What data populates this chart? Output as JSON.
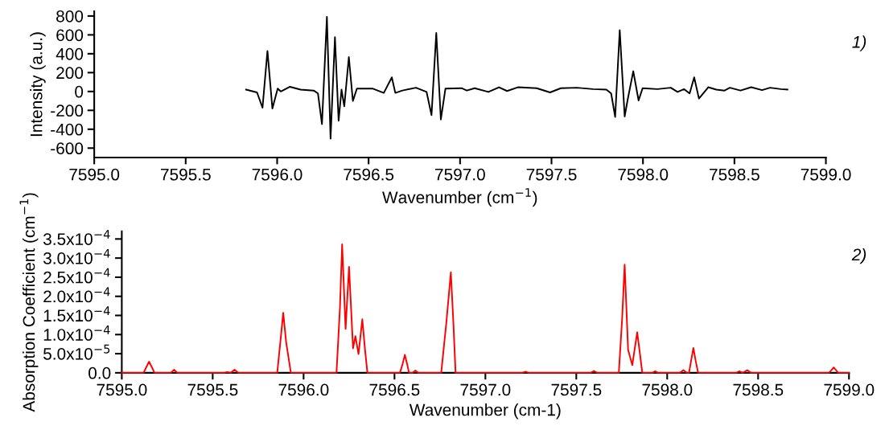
{
  "chart_data": [
    {
      "type": "line",
      "xlabel": "Wavenumber (cm$^{−1}$)",
      "ylabel": "Intensity (a.u.)",
      "annotations": [
        "1)"
      ],
      "xlim": [
        7595.0,
        7599.0
      ],
      "xticks": [
        {
          "value": 7595.0,
          "label": "7595.0"
        },
        {
          "value": 7595.5,
          "label": "7595.5"
        },
        {
          "value": 7596.0,
          "label": "7596.0"
        },
        {
          "value": 7596.5,
          "label": "7596.5"
        },
        {
          "value": 7597.0,
          "label": "7597.0"
        },
        {
          "value": 7597.5,
          "label": "7597.5"
        },
        {
          "value": 7598.0,
          "label": "7598.0"
        },
        {
          "value": 7598.5,
          "label": "7598.5"
        },
        {
          "value": 7599.0,
          "label": "7599.0"
        }
      ],
      "ylim": [
        -700,
        850
      ],
      "yticks": [
        -600,
        -400,
        -200,
        0,
        200,
        400,
        600,
        800
      ],
      "grid": false,
      "marker": "none",
      "line_style": "solid",
      "series": [
        {
          "color": "#000000",
          "x": [
            7595.83,
            7595.89,
            7595.92,
            7595.947,
            7595.974,
            7596.003,
            7596.02,
            7596.07,
            7596.128,
            7596.2,
            7596.223,
            7596.245,
            7596.272,
            7596.292,
            7596.316,
            7596.336,
            7596.352,
            7596.367,
            7596.392,
            7596.414,
            7596.436,
            7596.524,
            7596.583,
            7596.627,
            7596.646,
            7596.685,
            7596.759,
            7596.817,
            7596.844,
            7596.87,
            7596.895,
            7596.92,
            7597.008,
            7597.037,
            7597.08,
            7597.155,
            7597.213,
            7597.257,
            7597.316,
            7597.419,
            7597.492,
            7597.551,
            7597.639,
            7597.727,
            7597.8,
            7597.826,
            7597.848,
            7597.873,
            7597.9,
            7597.917,
            7597.947,
            7597.976,
            7597.998,
            7598.079,
            7598.152,
            7598.189,
            7598.225,
            7598.255,
            7598.28,
            7598.306,
            7598.357,
            7598.401,
            7598.446,
            7598.475,
            7598.533,
            7598.592,
            7598.651,
            7598.695,
            7598.754,
            7598.79
          ],
          "values": [
            20,
            -10,
            -172,
            430,
            -180,
            30,
            0,
            50,
            20,
            10,
            -20,
            -345,
            790,
            -500,
            575,
            -310,
            20,
            -158,
            365,
            -100,
            30,
            30,
            -15,
            150,
            -15,
            10,
            40,
            -5,
            -250,
            620,
            -297,
            30,
            35,
            10,
            35,
            -5,
            45,
            5,
            45,
            35,
            -10,
            35,
            40,
            25,
            20,
            -20,
            -270,
            650,
            -265,
            -80,
            215,
            -95,
            35,
            25,
            40,
            -5,
            25,
            -20,
            150,
            -75,
            45,
            20,
            10,
            40,
            10,
            45,
            15,
            40,
            25,
            20
          ]
        }
      ]
    },
    {
      "type": "line",
      "xlabel": "Wavenumber (cm-1)",
      "ylabel": "Absorption Coefficient (cm$^{−1}$)",
      "annotations": [
        "2)"
      ],
      "xlim": [
        7595.0,
        7599.0
      ],
      "xticks": [
        {
          "value": 7595.0,
          "label": "7595.0"
        },
        {
          "value": 7595.5,
          "label": "7595.5"
        },
        {
          "value": 7596.0,
          "label": "7596.0"
        },
        {
          "value": 7596.5,
          "label": "7596.5"
        },
        {
          "value": 7597.0,
          "label": "7597.0"
        },
        {
          "value": 7597.5,
          "label": "7597.5"
        },
        {
          "value": 7598.0,
          "label": "7598.0"
        },
        {
          "value": 7598.5,
          "label": "7598.5"
        },
        {
          "value": 7599.0,
          "label": "7599.0"
        }
      ],
      "ylim": [
        0,
        0.00037
      ],
      "yticks": [
        {
          "value": 0,
          "label": "0.0"
        },
        {
          "value": 5e-05,
          "label": "5.0x10$^{−5}$"
        },
        {
          "value": 0.0001,
          "label": "1.0x10$^{−4}$"
        },
        {
          "value": 0.00015,
          "label": "1.5x10$^{−4}$"
        },
        {
          "value": 0.0002,
          "label": "2.0x10$^{−4}$"
        },
        {
          "value": 0.00025,
          "label": "2.5x10$^{−4}$"
        },
        {
          "value": 0.0003,
          "label": "3.0x10$^{−4}$"
        },
        {
          "value": 0.00035,
          "label": "3.5x10$^{−4}$"
        }
      ],
      "grid": false,
      "marker": "none",
      "line_style": "solid",
      "series": [
        {
          "color": "#ff0000",
          "x": [
            7595.0,
            7595.12,
            7595.135,
            7595.15,
            7595.165,
            7595.18,
            7595.27,
            7595.288,
            7595.305,
            7595.565,
            7595.58,
            7595.6,
            7595.62,
            7595.64,
            7595.855,
            7595.872,
            7595.888,
            7595.904,
            7595.93,
            7596.181,
            7596.2,
            7596.212,
            7596.231,
            7596.25,
            7596.272,
            7596.285,
            7596.302,
            7596.323,
            7596.338,
            7596.351,
            7596.53,
            7596.545,
            7596.557,
            7596.569,
            7596.58,
            7596.6,
            7596.615,
            7596.63,
            7596.757,
            7596.785,
            7596.81,
            7596.824,
            7596.836,
            7597.205,
            7597.221,
            7597.237,
            7597.58,
            7597.597,
            7597.614,
            7597.734,
            7597.752,
            7597.766,
            7597.785,
            7597.808,
            7597.835,
            7597.85,
            7597.863,
            7597.92,
            7597.934,
            7597.948,
            7598.07,
            7598.089,
            7598.108,
            7598.12,
            7598.132,
            7598.144,
            7598.156,
            7598.17,
            7598.38,
            7598.397,
            7598.415,
            7598.441,
            7598.46,
            7598.89,
            7598.903,
            7598.916,
            7598.929,
            7598.94,
            7599.0
          ],
          "values": [
            0,
            0,
            1.5e-05,
            2.9e-05,
            1.5e-05,
            0,
            0,
            8e-06,
            0,
            0,
            2e-06,
            0,
            8e-06,
            0,
            0,
            8e-05,
            0.000157,
            8e-05,
            0,
            0,
            0.00017,
            0.000336,
            0.000115,
            0.000277,
            6.4e-05,
            9.6e-05,
            4.9e-05,
            0.00014,
            6e-05,
            0,
            0,
            2.4e-05,
            4.7e-05,
            2.4e-05,
            0,
            0,
            6e-06,
            0,
            0,
            0.00013,
            0.000263,
            0.00013,
            0,
            0,
            3e-06,
            0,
            0,
            5e-06,
            0,
            0,
            0.00014,
            0.000283,
            6e-05,
            2e-05,
            0.000106,
            5e-05,
            0,
            0,
            4e-06,
            0,
            0,
            7e-06,
            0,
            0,
            3.3e-05,
            6.5e-05,
            3.3e-05,
            0,
            0,
            4e-06,
            0,
            7e-06,
            0,
            0,
            7e-06,
            1.4e-05,
            7e-06,
            0,
            0
          ]
        }
      ]
    }
  ]
}
